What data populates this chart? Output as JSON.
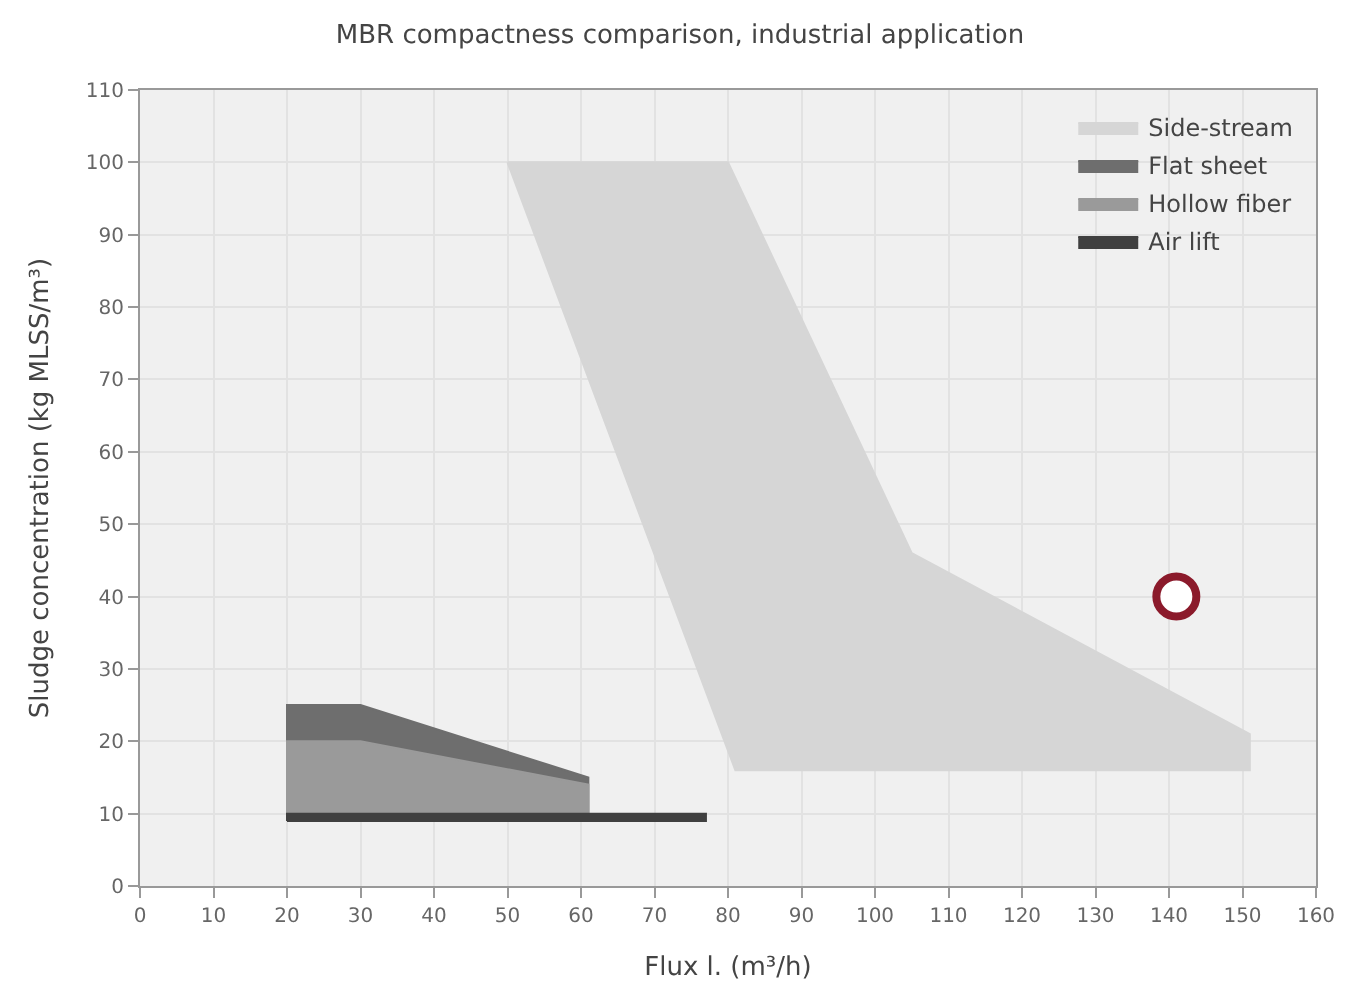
{
  "chart_data": {
    "type": "area",
    "title": "MBR compactness comparison, industrial application",
    "xlabel": "Flux l. (m³/h)",
    "ylabel": "Sludge concentration (kg MLSS/m³)",
    "xlim": [
      0,
      160
    ],
    "xticks": [
      0,
      10,
      20,
      30,
      40,
      50,
      60,
      70,
      80,
      90,
      100,
      110,
      120,
      130,
      140,
      150,
      160
    ],
    "ylim": [
      0,
      110
    ],
    "yticks": [
      0,
      10,
      20,
      30,
      40,
      50,
      60,
      70,
      80,
      90,
      100,
      110
    ],
    "grid": true,
    "legend": "top right",
    "series": [
      {
        "name": "Side-stream",
        "color": "#d6d6d6",
        "x": [
          50,
          80,
          105,
          151,
          151,
          81
        ],
        "values": [
          100,
          100,
          46,
          21,
          16,
          16
        ]
      },
      {
        "name": "Flat sheet",
        "color": "#6e6e6e",
        "x": [
          20,
          20,
          30,
          61,
          61
        ],
        "values": [
          10,
          25,
          25,
          15,
          10
        ]
      },
      {
        "name": "Hollow fiber",
        "color": "#9a9a9a",
        "x": [
          20,
          20,
          30,
          61,
          61
        ],
        "values": [
          10,
          20,
          20,
          14,
          10
        ]
      },
      {
        "name": "Air lift",
        "color": "#404040",
        "x": [
          20,
          20,
          77,
          77
        ],
        "values": [
          9,
          10,
          10,
          9
        ]
      },
      {
        "type": "scatter",
        "marker": "circle",
        "color": "#8b1a2b",
        "x": [
          141
        ],
        "values": [
          40
        ]
      }
    ]
  }
}
